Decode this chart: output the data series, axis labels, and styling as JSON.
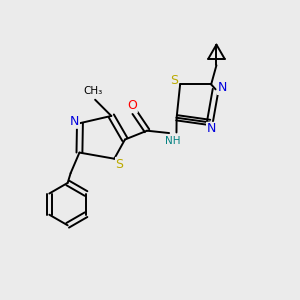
{
  "bg_color": "#ebebeb",
  "atom_colors": {
    "C": "#000000",
    "N": "#0000dd",
    "S": "#bbaa00",
    "O": "#ff0000",
    "H": "#008080"
  },
  "lw": 1.4,
  "fs": 9.0,
  "fs_small": 7.5
}
